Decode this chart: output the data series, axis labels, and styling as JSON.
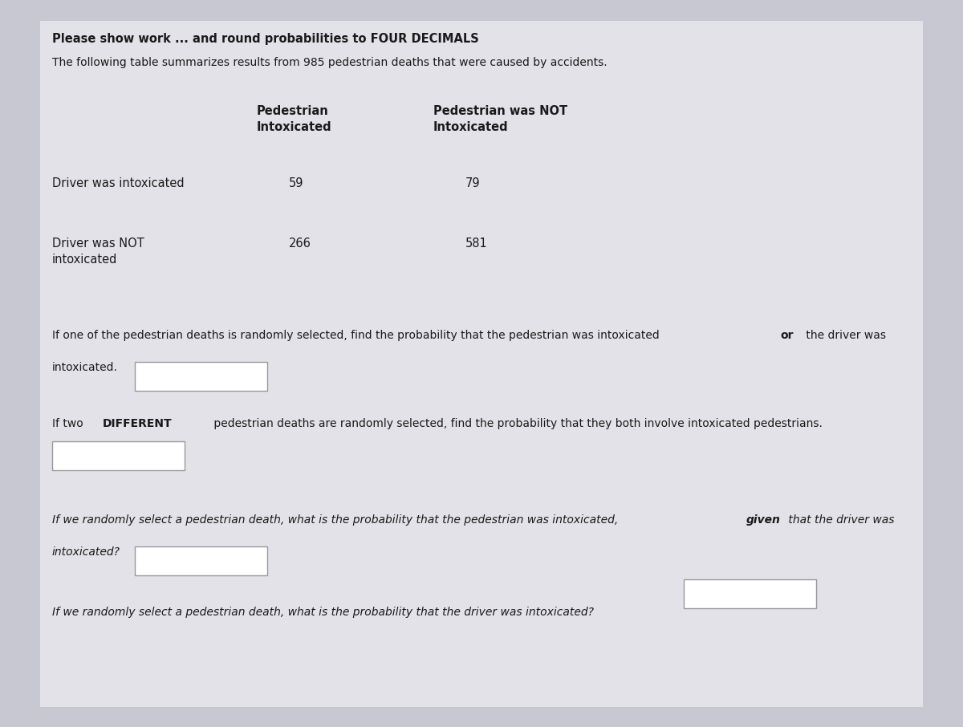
{
  "title1": "Please show work ... and round probabilities to FOUR DECIMALS",
  "title2": "The following table summarizes results from 985 pedestrian deaths that were caused by accidents.",
  "col_header1": "Pedestrian\nIntoxicated",
  "col_header2": "Pedestrian was NOT\nIntoxicated",
  "row_header1": "Driver was intoxicated",
  "row_header2": "Driver was NOT\nintoxicated",
  "cell_11": "59",
  "cell_12": "79",
  "cell_21": "266",
  "cell_22": "581",
  "bg_color": "#c8c8d2",
  "panel_color": "#e2e2e8",
  "text_color": "#1a1a1a",
  "box_color": "#ffffff",
  "box_border": "#999999"
}
